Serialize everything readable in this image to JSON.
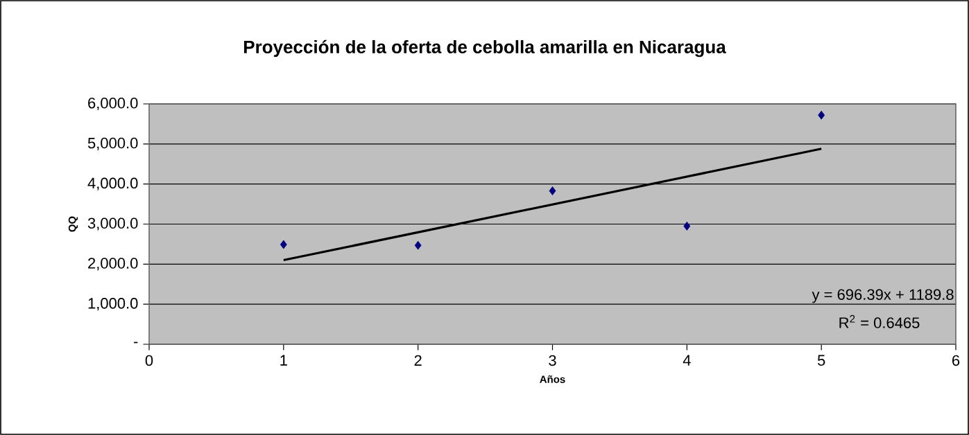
{
  "chart_data": {
    "type": "scatter",
    "title": "Proyección de la oferta de cebolla amarilla en Nicaragua",
    "xlabel": "Años",
    "ylabel": "QQ",
    "xlim": [
      0,
      6
    ],
    "xticks": [
      0,
      1,
      2,
      3,
      4,
      5,
      6
    ],
    "ylim": [
      0,
      6000
    ],
    "yticks": [
      {
        "value": 0,
        "label": "-"
      },
      {
        "value": 1000,
        "label": "1,000.0"
      },
      {
        "value": 2000,
        "label": "2,000.0"
      },
      {
        "value": 3000,
        "label": "3,000.0"
      },
      {
        "value": 4000,
        "label": "4,000.0"
      },
      {
        "value": 5000,
        "label": "5,000.0"
      },
      {
        "value": 6000,
        "label": "6,000.0"
      }
    ],
    "grid": "y",
    "marker": "diamond",
    "series": [
      {
        "color": "#000080",
        "x": [
          1,
          2,
          3,
          4,
          5
        ],
        "values": [
          2490,
          2470,
          3830,
          2950,
          5720
        ]
      },
      {
        "type": "line",
        "color": "#000000",
        "marker": "none",
        "x": [
          1,
          5
        ],
        "values": [
          2100,
          4880
        ]
      }
    ],
    "annotations": [
      "y = 696.39x + 1189.8",
      "R$^{2}$ = 0.6465"
    ]
  }
}
